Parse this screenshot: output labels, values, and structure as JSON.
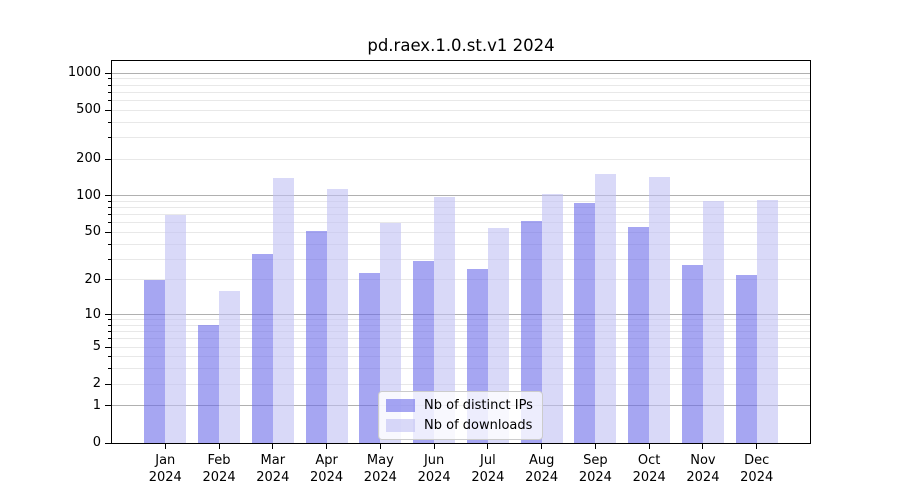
{
  "chart_data": {
    "type": "bar",
    "title": "pd.raex.1.0.st.v1 2024",
    "categories": [
      "Jan",
      "Feb",
      "Mar",
      "Apr",
      "May",
      "Jun",
      "Jul",
      "Aug",
      "Sep",
      "Oct",
      "Nov",
      "Dec"
    ],
    "category_year": "2024",
    "series": [
      {
        "name": "Nb of distinct IPs",
        "color": "rgba(107,107,233,0.6)",
        "color_displayed": "#a6a6f1",
        "values": [
          20,
          8,
          33,
          51,
          23,
          29,
          25,
          62,
          87,
          55,
          27,
          22
        ]
      },
      {
        "name": "Nb of downloads",
        "color": "rgba(192,192,243,0.6)",
        "color_displayed": "#d9d9f7",
        "values": [
          70,
          16,
          140,
          113,
          60,
          97,
          54,
          104,
          150,
          142,
          91,
          93
        ]
      }
    ],
    "yscale": "log1p",
    "yticks": [
      0,
      1,
      2,
      5,
      10,
      20,
      50,
      100,
      200,
      500,
      1000
    ],
    "ylim": [
      0,
      1253
    ],
    "grid": true,
    "legend_position": "lower center",
    "axis_color": "#000000",
    "grid_major_color": "#b0b0b0",
    "grid_minor_color": "#e8e8e8"
  }
}
